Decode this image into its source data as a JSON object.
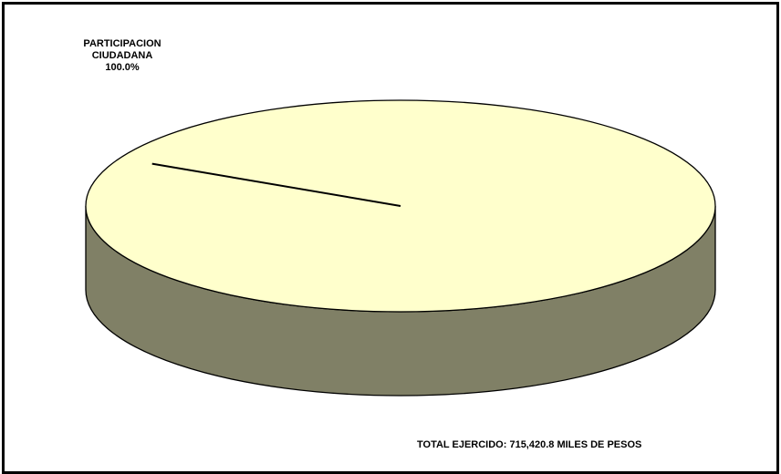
{
  "chart_data": {
    "type": "pie",
    "categories": [
      "PARTICIPACION CIUDADANA"
    ],
    "values": [
      100.0
    ],
    "data_labels": [
      {
        "line1": "PARTICIPACION",
        "line2": "CIUDADANA",
        "pct": "100.0%"
      }
    ],
    "annotation": "TOTAL EJERCIDO: 715,420.8 MILES DE PESOS",
    "legend": "none",
    "three_d": true
  },
  "colors": {
    "top": "#FFFFCC",
    "side": "#808066",
    "outline": "#000000",
    "frame": "#000000"
  }
}
